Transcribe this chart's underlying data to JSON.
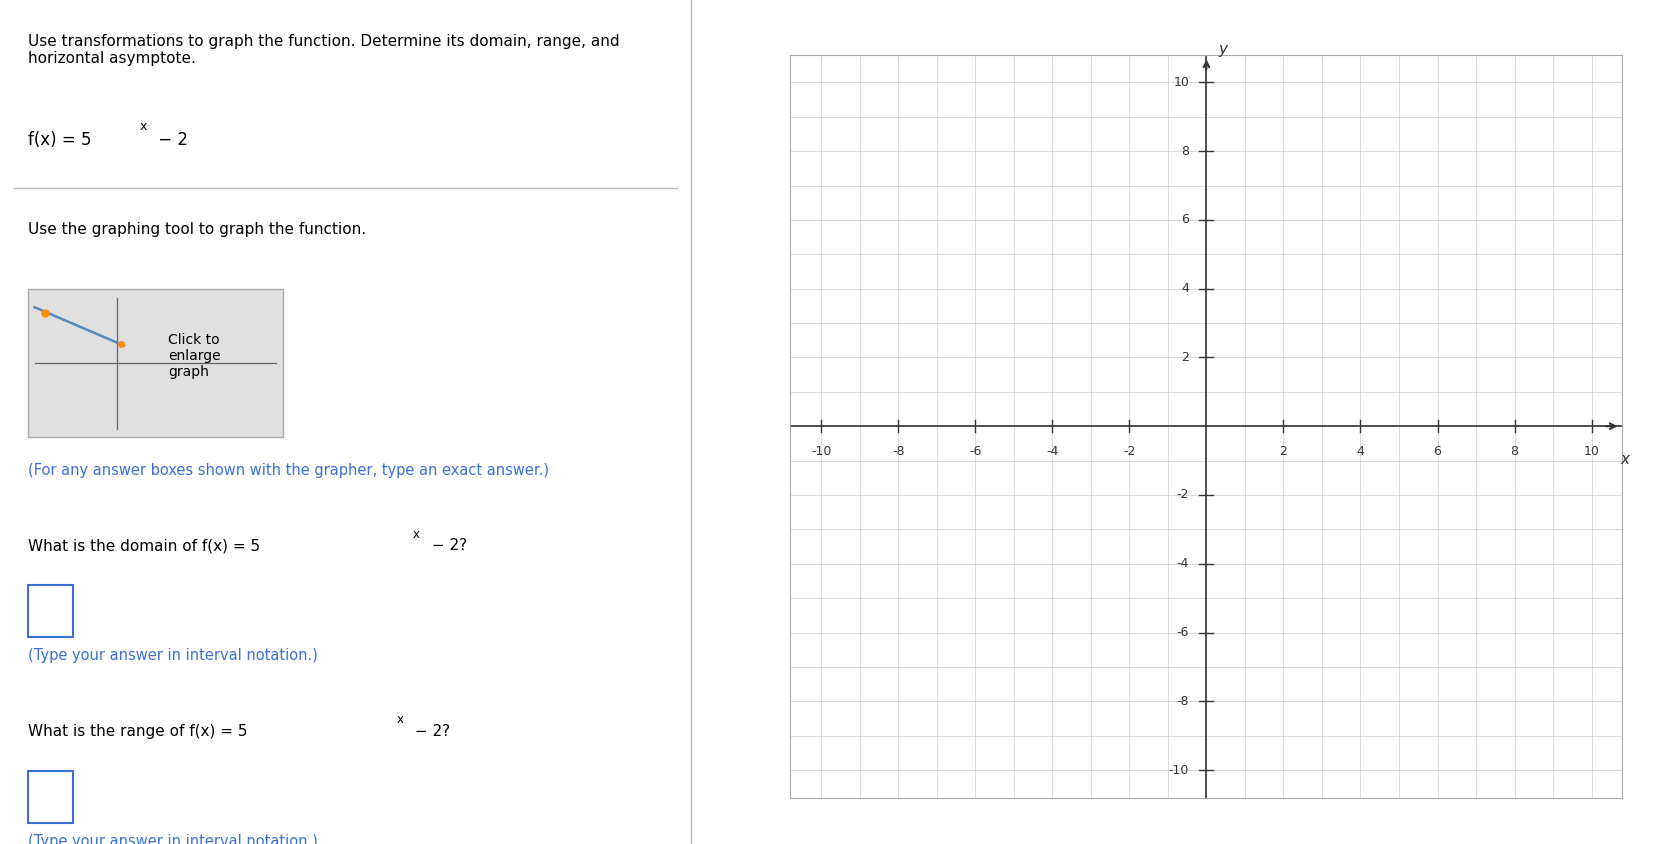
{
  "title_text": "Use transformations to graph the function. Determine its domain, range, and\nhorizontal asymptote.",
  "graphing_tool_text": "Use the graphing tool to graph the function.",
  "click_to_enlarge_text": "Click to\nenlarge\ngraph",
  "for_any_answer_text": "(For any answer boxes shown with the grapher, type an exact answer.)",
  "interval_note": "(Type your answer in interval notation.)",
  "bg_color": "#ffffff",
  "text_color": "#000000",
  "blue_text_color": "#3a6fd8",
  "grid_color": "#cccccc",
  "axis_color": "#333333",
  "divider_color": "#bbbbbb",
  "box_color": "#3a6fd8",
  "thumbnail_bg": "#e0e0e0",
  "thumbnail_line_color": "#5588bb",
  "thumbnail_dot_color": "#ff8c00",
  "xlim": [
    -10,
    10
  ],
  "ylim": [
    -10,
    10
  ],
  "xticks": [
    -10,
    -8,
    -6,
    -4,
    -2,
    2,
    4,
    6,
    8,
    10
  ],
  "yticks": [
    -10,
    -8,
    -6,
    -4,
    -2,
    2,
    4,
    6,
    8,
    10
  ]
}
